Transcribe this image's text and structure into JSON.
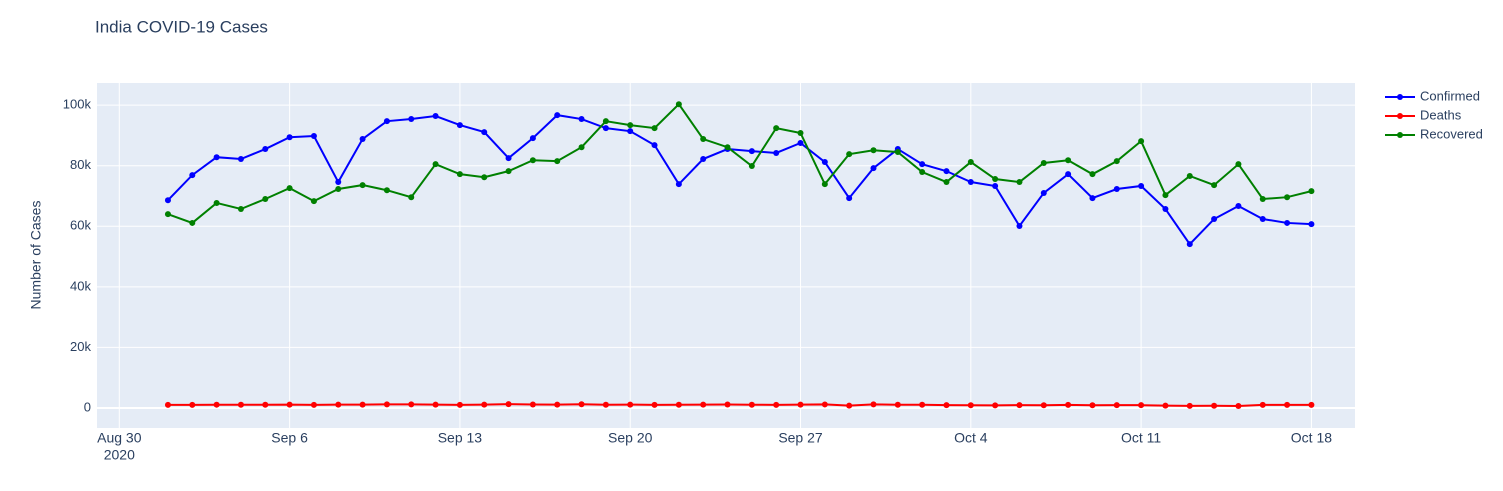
{
  "chart_data": {
    "type": "line",
    "title": "India COVID-19 Cases",
    "y_axis_label": "Number of Cases",
    "x_axis_year": "2020",
    "x": [
      "2020-09-01",
      "2020-09-02",
      "2020-09-03",
      "2020-09-04",
      "2020-09-05",
      "2020-09-06",
      "2020-09-07",
      "2020-09-08",
      "2020-09-09",
      "2020-09-10",
      "2020-09-11",
      "2020-09-12",
      "2020-09-13",
      "2020-09-14",
      "2020-09-15",
      "2020-09-16",
      "2020-09-17",
      "2020-09-18",
      "2020-09-19",
      "2020-09-20",
      "2020-09-21",
      "2020-09-22",
      "2020-09-23",
      "2020-09-24",
      "2020-09-25",
      "2020-09-26",
      "2020-09-27",
      "2020-09-28",
      "2020-09-29",
      "2020-09-30",
      "2020-10-01",
      "2020-10-02",
      "2020-10-03",
      "2020-10-04",
      "2020-10-05",
      "2020-10-06",
      "2020-10-07",
      "2020-10-08",
      "2020-10-09",
      "2020-10-10",
      "2020-10-11",
      "2020-10-12",
      "2020-10-13",
      "2020-10-14",
      "2020-10-15",
      "2020-10-16",
      "2020-10-17",
      "2020-10-18"
    ],
    "series": [
      {
        "name": "Confirmed",
        "color": "#0000ff",
        "values": [
          68600,
          76900,
          82800,
          82200,
          85500,
          89400,
          89800,
          74600,
          88800,
          94700,
          95400,
          96400,
          93400,
          91100,
          82500,
          89100,
          96700,
          95400,
          92400,
          91400,
          86800,
          73900,
          82200,
          85500,
          84800,
          84200,
          87500,
          81200,
          69300,
          79200,
          85500,
          80500,
          78200,
          74600,
          73300,
          60100,
          71000,
          77200,
          69300,
          72300,
          73300,
          65700,
          54100,
          62400,
          66700,
          62400,
          61100,
          60700
        ]
      },
      {
        "name": "Deaths",
        "color": "#ff0000",
        "values": [
          1026,
          1045,
          1096,
          1065,
          1065,
          1133,
          1016,
          1133,
          1115,
          1209,
          1201,
          1114,
          1054,
          1136,
          1290,
          1174,
          1132,
          1247,
          1089,
          1130,
          1053,
          1085,
          1129,
          1141,
          1089,
          1039,
          1124,
          1179,
          776,
          1181,
          1069,
          1095,
          940,
          903,
          884,
          961,
          918,
          1034,
          895,
          955,
          939,
          781,
          703,
          730,
          680,
          1033,
          1032,
          1033
        ]
      },
      {
        "name": "Recovered",
        "color": "#008000",
        "values": [
          64000,
          61100,
          67700,
          65700,
          69000,
          72600,
          68300,
          72300,
          73600,
          71900,
          69600,
          80500,
          77200,
          76200,
          78200,
          81800,
          81500,
          86100,
          94700,
          93400,
          92400,
          100300,
          88800,
          86100,
          79900,
          92400,
          90800,
          73900,
          83800,
          85100,
          84500,
          77900,
          74600,
          81200,
          75600,
          74600,
          80900,
          81800,
          77200,
          81500,
          88100,
          70300,
          76600,
          73600,
          80500,
          69000,
          69600,
          71600
        ]
      }
    ],
    "xlim": [
      "2020-08-29T02:00",
      "2020-10-19T19:00"
    ],
    "xticks": [
      {
        "value": "2020-08-30",
        "label": "Aug 30"
      },
      {
        "value": "2020-09-06",
        "label": "Sep 6"
      },
      {
        "value": "2020-09-13",
        "label": "Sep 13"
      },
      {
        "value": "2020-09-20",
        "label": "Sep 20"
      },
      {
        "value": "2020-09-27",
        "label": "Sep 27"
      },
      {
        "value": "2020-10-04",
        "label": "Oct 4"
      },
      {
        "value": "2020-10-11",
        "label": "Oct 11"
      },
      {
        "value": "2020-10-18",
        "label": "Oct 18"
      }
    ],
    "ylim": [
      -6600,
      107300
    ],
    "yticks": [
      0,
      {
        "value": 20000,
        "label": "20k"
      },
      {
        "value": 40000,
        "label": "40k"
      },
      {
        "value": 60000,
        "label": "60k"
      },
      {
        "value": 80000,
        "label": "80k"
      },
      {
        "value": 100000,
        "label": "100k"
      }
    ],
    "grid": true,
    "legend": "top-right"
  }
}
